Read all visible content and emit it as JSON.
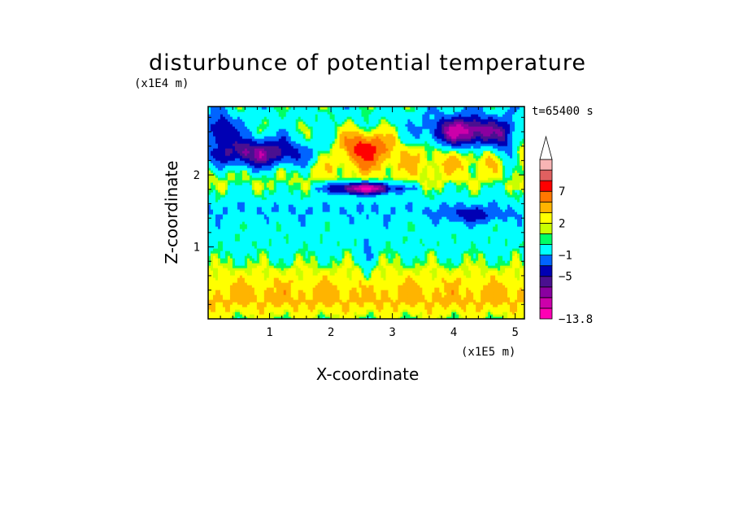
{
  "chart_data": {
    "type": "heatmap",
    "title": "disturbunce of potential temperature",
    "xlabel": "X-coordinate",
    "ylabel": "Z-coordinate",
    "x_unit": "(x1E5 m)",
    "y_unit": "(x1E4 m)",
    "time_label": "t=65400 s",
    "xlim": [
      0,
      5.15
    ],
    "ylim": [
      0,
      2.95
    ],
    "x_ticks": [
      1,
      2,
      3,
      4,
      5
    ],
    "y_ticks": [
      1,
      2
    ],
    "colorbar": {
      "labels": [
        "7",
        "2",
        "−1",
        "−5",
        "−13.8"
      ],
      "min": -13.8,
      "bins": [
        {
          "color": "#ff00b4"
        },
        {
          "color": "#cc00aa"
        },
        {
          "color": "#8a00a0"
        },
        {
          "color": "#4a1090"
        },
        {
          "color": "#0000b4"
        },
        {
          "color": "#0064ff"
        },
        {
          "color": "#00ffff"
        },
        {
          "color": "#00ff64"
        },
        {
          "color": "#c8ff00"
        },
        {
          "color": "#ffff00"
        },
        {
          "color": "#ffb400"
        },
        {
          "color": "#ff7800"
        },
        {
          "color": "#ff0000"
        },
        {
          "color": "#e06060"
        },
        {
          "color": "#f8b4b4"
        }
      ],
      "over_color": "#ffffff"
    },
    "grid": false,
    "levels": [
      -13.8,
      -5,
      -1,
      2,
      7
    ],
    "features": [
      {
        "name": "upper-left negative band",
        "x": [
          0,
          1.7
        ],
        "z": [
          1.9,
          2.8
        ],
        "value": -6
      },
      {
        "name": "upper-right negative region",
        "x": [
          3.5,
          5.1
        ],
        "z": [
          2.2,
          2.8
        ],
        "value": -6
      },
      {
        "name": "central positive maximum",
        "x": [
          2.2,
          2.9
        ],
        "z": [
          2.2,
          2.6
        ],
        "value": 7
      },
      {
        "name": "central negative arc",
        "x": [
          1.9,
          3.1
        ],
        "z": [
          1.7,
          1.9
        ],
        "value": -5
      },
      {
        "name": "mid-level near-zero band",
        "x": [
          0,
          5.1
        ],
        "z": [
          1.0,
          1.5
        ],
        "value": 0.5
      },
      {
        "name": "lower positive layer",
        "x": [
          0,
          5.1
        ],
        "z": [
          0,
          0.9
        ],
        "value": 2
      }
    ]
  }
}
